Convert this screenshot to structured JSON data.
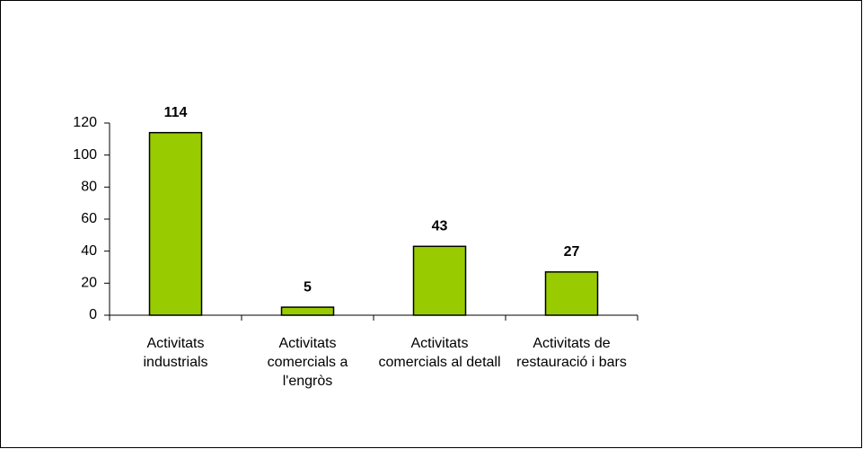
{
  "chart_data": {
    "type": "bar",
    "categories": [
      "Activitats industrials",
      "Activitats comercials a l'engròs",
      "Activitats comercials al detall",
      "Activitats de restauració i bars"
    ],
    "values": [
      114,
      5,
      43,
      27
    ],
    "color": "#99cc00",
    "ylim": [
      0,
      120
    ],
    "yticks": [
      0,
      20,
      40,
      60,
      80,
      100,
      120
    ],
    "grid": false
  }
}
